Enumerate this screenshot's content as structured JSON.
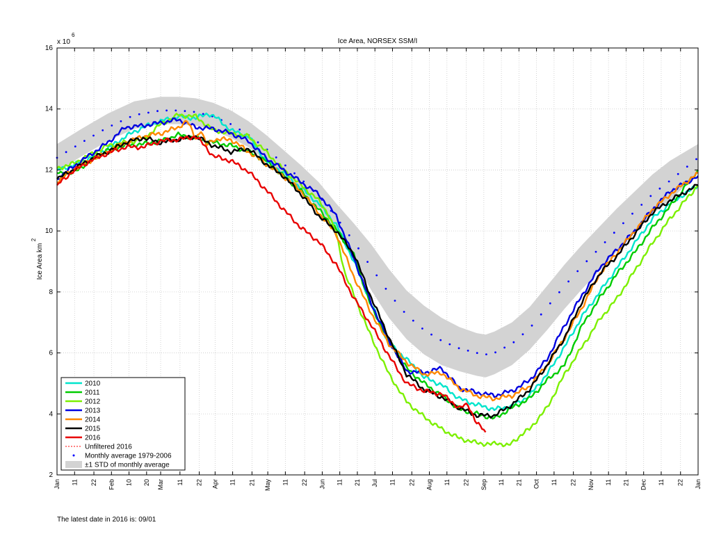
{
  "chart_data": {
    "type": "line",
    "title": "Ice Area, NORSEX SSM/I",
    "ylabel": "Ice Area km",
    "ylabel_superscript": "2",
    "y_multiplier_label": "x 10",
    "y_multiplier_exponent": "6",
    "ylim": [
      2,
      16
    ],
    "yticks": [
      2,
      4,
      6,
      8,
      10,
      12,
      14,
      16
    ],
    "xlim": [
      1,
      366
    ],
    "grid": true,
    "legend_position": "bottom-left",
    "xticks": [
      {
        "day": 1,
        "label": "Jan"
      },
      {
        "day": 11,
        "label": "11"
      },
      {
        "day": 22,
        "label": "22"
      },
      {
        "day": 32,
        "label": "Feb"
      },
      {
        "day": 42,
        "label": "10"
      },
      {
        "day": 52,
        "label": "20"
      },
      {
        "day": 60,
        "label": "Mar"
      },
      {
        "day": 71,
        "label": "11"
      },
      {
        "day": 82,
        "label": "22"
      },
      {
        "day": 91,
        "label": "Apr"
      },
      {
        "day": 101,
        "label": "11"
      },
      {
        "day": 112,
        "label": "21"
      },
      {
        "day": 121,
        "label": "May"
      },
      {
        "day": 131,
        "label": "11"
      },
      {
        "day": 142,
        "label": "22"
      },
      {
        "day": 152,
        "label": "Jun"
      },
      {
        "day": 162,
        "label": "11"
      },
      {
        "day": 172,
        "label": "21"
      },
      {
        "day": 182,
        "label": "Jul"
      },
      {
        "day": 192,
        "label": "11"
      },
      {
        "day": 203,
        "label": "22"
      },
      {
        "day": 213,
        "label": "Aug"
      },
      {
        "day": 223,
        "label": "11"
      },
      {
        "day": 234,
        "label": "22"
      },
      {
        "day": 244,
        "label": "Sep"
      },
      {
        "day": 254,
        "label": "11"
      },
      {
        "day": 264,
        "label": "21"
      },
      {
        "day": 274,
        "label": "Oct"
      },
      {
        "day": 284,
        "label": "11"
      },
      {
        "day": 295,
        "label": "22"
      },
      {
        "day": 305,
        "label": "Nov"
      },
      {
        "day": 315,
        "label": "11"
      },
      {
        "day": 325,
        "label": "21"
      },
      {
        "day": 335,
        "label": "Dec"
      },
      {
        "day": 345,
        "label": "11"
      },
      {
        "day": 356,
        "label": "22"
      },
      {
        "day": 366,
        "label": "Jan"
      }
    ],
    "average": {
      "name": "Monthly average 1979-2006",
      "color": "#0000ff",
      "x": [
        1,
        15,
        30,
        45,
        60,
        70,
        80,
        90,
        100,
        110,
        120,
        130,
        140,
        150,
        160,
        170,
        180,
        190,
        200,
        210,
        220,
        230,
        240,
        245,
        250,
        260,
        270,
        280,
        290,
        300,
        310,
        320,
        330,
        340,
        350,
        366
      ],
      "y": [
        12.4,
        12.9,
        13.4,
        13.8,
        13.95,
        13.95,
        13.9,
        13.75,
        13.5,
        13.15,
        12.7,
        12.2,
        11.7,
        11.15,
        10.45,
        9.65,
        8.8,
        7.95,
        7.25,
        6.75,
        6.4,
        6.15,
        6.0,
        5.95,
        6.0,
        6.3,
        6.8,
        7.5,
        8.2,
        8.85,
        9.45,
        10.05,
        10.65,
        11.2,
        11.65,
        12.4
      ]
    },
    "std_band": {
      "name": "±1 STD of monthly average",
      "color": "#d3d3d3",
      "x": [
        1,
        15,
        30,
        45,
        60,
        70,
        80,
        90,
        100,
        110,
        120,
        130,
        140,
        150,
        160,
        170,
        180,
        190,
        200,
        210,
        220,
        230,
        240,
        245,
        250,
        260,
        270,
        280,
        290,
        300,
        310,
        320,
        330,
        340,
        350,
        366
      ],
      "lower": [
        11.95,
        12.45,
        12.95,
        13.35,
        13.5,
        13.5,
        13.45,
        13.3,
        13.05,
        12.75,
        12.3,
        11.8,
        11.3,
        10.75,
        10.0,
        9.05,
        8.05,
        7.15,
        6.45,
        5.95,
        5.6,
        5.4,
        5.25,
        5.2,
        5.3,
        5.6,
        6.1,
        6.75,
        7.45,
        8.1,
        8.7,
        9.35,
        10.0,
        10.55,
        11.0,
        11.9
      ],
      "upper": [
        12.85,
        13.35,
        13.85,
        14.25,
        14.4,
        14.4,
        14.35,
        14.2,
        13.95,
        13.6,
        13.15,
        12.65,
        12.15,
        11.6,
        10.9,
        10.25,
        9.55,
        8.75,
        8.05,
        7.55,
        7.15,
        6.85,
        6.65,
        6.6,
        6.7,
        7.0,
        7.5,
        8.2,
        8.9,
        9.55,
        10.15,
        10.75,
        11.3,
        11.85,
        12.3,
        12.85
      ]
    },
    "series": [
      {
        "name": "2010",
        "color": "#00e5cc",
        "x": [
          1,
          10,
          20,
          30,
          40,
          50,
          60,
          70,
          80,
          87,
          92,
          100,
          110,
          120,
          130,
          140,
          150,
          160,
          170,
          180,
          190,
          200,
          210,
          220,
          230,
          240,
          250,
          260,
          270,
          280,
          290,
          300,
          310,
          320,
          330,
          340,
          350,
          366
        ],
        "y": [
          12.0,
          12.15,
          12.4,
          12.7,
          13.1,
          13.4,
          13.6,
          13.75,
          13.7,
          13.85,
          13.7,
          13.3,
          13.1,
          12.3,
          11.9,
          11.4,
          10.9,
          10.2,
          9.0,
          7.6,
          6.3,
          5.8,
          5.2,
          4.95,
          4.5,
          4.3,
          4.15,
          4.25,
          4.6,
          5.3,
          6.2,
          7.2,
          8.0,
          8.8,
          9.6,
          10.4,
          10.9,
          11.5
        ]
      },
      {
        "name": "2011",
        "color": "#00cc00",
        "x": [
          1,
          10,
          20,
          30,
          40,
          50,
          60,
          70,
          80,
          90,
          100,
          110,
          120,
          130,
          140,
          150,
          160,
          170,
          180,
          190,
          200,
          210,
          220,
          230,
          240,
          250,
          260,
          270,
          280,
          290,
          300,
          310,
          320,
          330,
          340,
          350,
          366
        ],
        "y": [
          11.9,
          11.9,
          12.3,
          12.65,
          12.8,
          12.85,
          12.95,
          13.15,
          13.05,
          12.9,
          12.8,
          12.6,
          12.3,
          11.8,
          11.3,
          10.7,
          10.05,
          9.2,
          7.5,
          6.4,
          5.5,
          5.0,
          4.6,
          4.15,
          4.0,
          3.85,
          4.2,
          4.5,
          5.1,
          5.6,
          6.9,
          7.8,
          8.6,
          9.3,
          10.1,
          10.8,
          12.0
        ]
      },
      {
        "name": "2012",
        "color": "#7cf000",
        "x": [
          1,
          10,
          20,
          30,
          40,
          50,
          60,
          70,
          80,
          90,
          100,
          110,
          120,
          130,
          140,
          150,
          155,
          160,
          165,
          170,
          180,
          190,
          200,
          210,
          220,
          230,
          240,
          248,
          252,
          258,
          265,
          270,
          280,
          290,
          300,
          310,
          320,
          330,
          340,
          350,
          366
        ],
        "y": [
          12.05,
          12.2,
          12.5,
          12.8,
          12.9,
          13.0,
          13.5,
          13.8,
          13.75,
          13.3,
          13.2,
          13.1,
          12.6,
          12.0,
          11.5,
          11.0,
          10.6,
          9.9,
          8.6,
          7.9,
          6.5,
          5.3,
          4.4,
          3.9,
          3.5,
          3.2,
          3.05,
          3.0,
          3.05,
          2.95,
          3.3,
          3.5,
          4.2,
          5.3,
          6.2,
          7.1,
          7.8,
          8.7,
          9.6,
          10.4,
          11.5
        ]
      },
      {
        "name": "2013",
        "color": "#0000e0",
        "x": [
          1,
          10,
          20,
          30,
          40,
          50,
          60,
          70,
          80,
          90,
          100,
          110,
          120,
          130,
          140,
          150,
          160,
          170,
          180,
          190,
          200,
          210,
          220,
          230,
          240,
          250,
          260,
          270,
          280,
          290,
          300,
          310,
          320,
          330,
          340,
          350,
          366
        ],
        "y": [
          11.7,
          12.1,
          12.5,
          12.9,
          13.4,
          13.45,
          13.55,
          13.65,
          13.4,
          13.35,
          13.2,
          12.95,
          12.4,
          12.0,
          11.6,
          11.2,
          10.5,
          9.1,
          7.6,
          6.4,
          5.4,
          5.35,
          5.5,
          4.85,
          4.7,
          4.6,
          4.75,
          5.1,
          5.8,
          6.9,
          7.9,
          8.8,
          9.4,
          10.0,
          10.7,
          11.3,
          11.8
        ]
      },
      {
        "name": "2014",
        "color": "#ff8800",
        "x": [
          1,
          10,
          20,
          30,
          40,
          50,
          60,
          70,
          75,
          80,
          83,
          86,
          90,
          100,
          110,
          120,
          130,
          140,
          150,
          160,
          170,
          180,
          190,
          200,
          210,
          220,
          230,
          240,
          250,
          260,
          270,
          280,
          290,
          300,
          310,
          320,
          330,
          340,
          350,
          366
        ],
        "y": [
          11.6,
          12.0,
          12.3,
          12.6,
          12.9,
          13.1,
          13.2,
          13.4,
          13.6,
          13.05,
          13.3,
          12.8,
          13.0,
          13.0,
          12.6,
          12.2,
          11.8,
          11.3,
          10.6,
          9.9,
          8.5,
          7.3,
          6.3,
          5.7,
          5.3,
          5.35,
          4.85,
          4.6,
          4.5,
          4.6,
          4.9,
          5.6,
          6.5,
          7.5,
          8.6,
          9.3,
          10.0,
          10.7,
          11.2,
          11.9
        ]
      },
      {
        "name": "2015",
        "color": "#000000",
        "x": [
          1,
          10,
          20,
          30,
          40,
          50,
          60,
          70,
          80,
          90,
          100,
          110,
          120,
          130,
          140,
          150,
          160,
          170,
          180,
          190,
          200,
          210,
          220,
          230,
          240,
          250,
          260,
          270,
          280,
          290,
          300,
          310,
          320,
          330,
          340,
          350,
          366
        ],
        "y": [
          11.7,
          12.0,
          12.35,
          12.6,
          12.9,
          13.05,
          12.9,
          13.0,
          13.1,
          12.8,
          12.6,
          12.7,
          12.2,
          11.8,
          11.2,
          10.5,
          10.0,
          9.25,
          7.8,
          6.5,
          5.3,
          4.8,
          4.55,
          4.2,
          3.95,
          3.95,
          4.3,
          4.8,
          5.6,
          6.5,
          7.7,
          8.6,
          9.2,
          9.9,
          10.6,
          11.0,
          11.5
        ]
      },
      {
        "name": "2016",
        "color": "#e80000",
        "x": [
          1,
          10,
          20,
          30,
          40,
          50,
          60,
          70,
          80,
          85,
          90,
          100,
          110,
          120,
          130,
          140,
          150,
          160,
          170,
          180,
          190,
          200,
          210,
          220,
          230,
          235,
          240,
          245
        ],
        "y": [
          11.5,
          11.95,
          12.3,
          12.55,
          12.75,
          12.75,
          12.95,
          13.0,
          13.1,
          12.8,
          12.45,
          12.3,
          11.95,
          11.35,
          10.7,
          10.1,
          9.65,
          8.9,
          7.8,
          6.9,
          5.9,
          5.0,
          4.75,
          4.65,
          4.2,
          4.3,
          3.7,
          3.4
        ]
      }
    ],
    "legend_entries": [
      {
        "label": "2010",
        "kind": "line",
        "color": "#00e5cc"
      },
      {
        "label": "2011",
        "kind": "line",
        "color": "#00cc00"
      },
      {
        "label": "2012",
        "kind": "line",
        "color": "#7cf000"
      },
      {
        "label": "2013",
        "kind": "line",
        "color": "#0000e0"
      },
      {
        "label": "2014",
        "kind": "line",
        "color": "#ff8800"
      },
      {
        "label": "2015",
        "kind": "line",
        "color": "#000000"
      },
      {
        "label": "2016",
        "kind": "line",
        "color": "#e80000"
      },
      {
        "label": "Unfiltered 2016",
        "kind": "dashed",
        "color": "#ff0000"
      },
      {
        "label": "Monthly average 1979-2006",
        "kind": "dot",
        "color": "#0000ff"
      },
      {
        "label": "±1 STD of monthly average",
        "kind": "band",
        "color": "#d3d3d3"
      }
    ]
  },
  "footer": {
    "text": "The latest date in 2016 is: 09/01"
  }
}
